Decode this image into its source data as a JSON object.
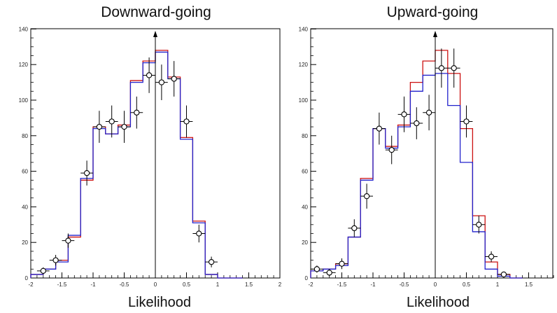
{
  "chart_data": [
    {
      "type": "line",
      "title": "Downward-going",
      "xlabel": "Likelihood",
      "ylabel": "",
      "xlim": [
        -2,
        2
      ],
      "ylim": [
        0,
        140
      ],
      "xticks": [
        "-2",
        "-1.5",
        "-1",
        "-0.5",
        "0",
        "0.5",
        "1",
        "1.5",
        "2"
      ],
      "yticks": [
        "0",
        "20",
        "40",
        "60",
        "80",
        "100",
        "120",
        "140"
      ],
      "grid": false,
      "legend": "none",
      "bin_edges": [
        -2,
        -1.8,
        -1.6,
        -1.4,
        -1.2,
        -1.0,
        -0.8,
        -0.6,
        -0.4,
        -0.2,
        0.0,
        0.2,
        0.4,
        0.6,
        0.8,
        1.0,
        1.2,
        1.4
      ],
      "series": [
        {
          "kind": "histogram",
          "color": "#cc1111",
          "values": [
            2,
            5,
            10,
            23,
            55,
            85,
            81,
            86,
            111,
            122,
            128,
            113,
            79,
            32,
            2,
            0,
            0
          ]
        },
        {
          "kind": "histogram",
          "color": "#2222cc",
          "values": [
            2,
            5,
            9,
            24,
            56,
            84,
            81,
            85,
            110,
            121,
            127,
            112,
            78,
            31,
            2,
            0,
            0
          ]
        },
        {
          "kind": "points",
          "color": "#000000",
          "x": [
            -1.8,
            -1.6,
            -1.4,
            -1.1,
            -0.9,
            -0.7,
            -0.5,
            -0.3,
            -0.1,
            0.1,
            0.3,
            0.5,
            0.7,
            0.9
          ],
          "y": [
            4,
            10,
            21,
            59,
            85,
            88,
            85,
            93,
            114,
            110,
            112,
            88,
            25,
            9
          ],
          "err": [
            2,
            3,
            4,
            7,
            9,
            9,
            9,
            9,
            10,
            10,
            10,
            9,
            5,
            3
          ]
        }
      ],
      "annotations": [
        {
          "type": "arrow",
          "x": 0
        }
      ]
    },
    {
      "type": "line",
      "title": "Upward-going",
      "xlabel": "Likelihood",
      "ylabel": "",
      "xlim": [
        -2,
        2
      ],
      "ylim": [
        0,
        140
      ],
      "xticks": [
        "-2",
        "-1.5",
        "-1",
        "-0.5",
        "0",
        "0.5",
        "1",
        "1.5"
      ],
      "yticks": [
        "0",
        "20",
        "40",
        "60",
        "80",
        "100",
        "120",
        "140"
      ],
      "grid": false,
      "legend": "none",
      "bin_edges": [
        -2,
        -1.8,
        -1.6,
        -1.4,
        -1.2,
        -1.0,
        -0.8,
        -0.6,
        -0.4,
        -0.2,
        0.0,
        0.2,
        0.4,
        0.6,
        0.8,
        1.0,
        1.2,
        1.4
      ],
      "series": [
        {
          "kind": "histogram",
          "color": "#cc1111",
          "values": [
            4,
            5,
            8,
            23,
            56,
            84,
            74,
            86,
            110,
            122,
            128,
            115,
            84,
            35,
            9,
            2,
            0
          ]
        },
        {
          "kind": "histogram",
          "color": "#2222cc",
          "values": [
            4,
            5,
            7,
            23,
            55,
            84,
            73,
            85,
            105,
            114,
            115,
            97,
            65,
            26,
            5,
            1,
            0
          ]
        },
        {
          "kind": "points",
          "color": "#000000",
          "x": [
            -1.9,
            -1.7,
            -1.5,
            -1.3,
            -1.1,
            -0.9,
            -0.7,
            -0.5,
            -0.3,
            -0.1,
            0.1,
            0.3,
            0.5,
            0.7,
            0.9,
            1.1
          ],
          "y": [
            5,
            3,
            8,
            28,
            46,
            84,
            72,
            92,
            87,
            93,
            118,
            118,
            88,
            30,
            12,
            2
          ],
          "err": [
            2,
            2,
            3,
            5,
            7,
            9,
            8,
            10,
            9,
            10,
            11,
            11,
            9,
            5,
            3,
            1
          ]
        }
      ],
      "annotations": [
        {
          "type": "arrow",
          "x": 0
        }
      ]
    }
  ]
}
